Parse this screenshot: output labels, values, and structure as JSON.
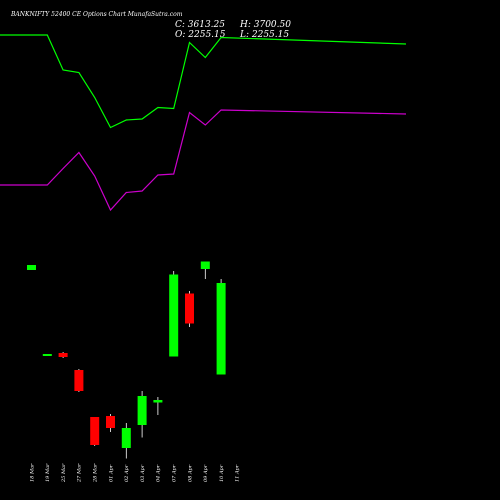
{
  "chart_data": {
    "type": "candlestick",
    "title": "BANKNIFTY 52400 CE Options Chart MunafaSutra.com",
    "ohlc_readout": {
      "close": "C: 3613.25",
      "high": "H: 3700.50",
      "open": "O: 2255.15",
      "low": "L: 2255.15"
    },
    "colors": {
      "background": "#000000",
      "up": "#00ff00",
      "down": "#ff0000",
      "line_upper": "#00ff00",
      "line_lower": "#cc00cc",
      "text": "#ffffff"
    },
    "dates": [
      "18 Mar",
      "19 Mar",
      "25 Mar",
      "27 Mar",
      "28 Mar",
      "01 Apr",
      "02 Apr",
      "03 Apr",
      "04 Apr",
      "07 Apr",
      "08 Apr",
      "09 Apr",
      "10 Apr",
      "11 Apr"
    ],
    "candles": [
      {
        "date": "18 Mar",
        "open": 760,
        "high": 770,
        "low": 760,
        "close": 770
      },
      {
        "date": "19 Mar",
        "open": 588,
        "high": 592,
        "low": 588,
        "close": 592
      },
      {
        "date": "25 Mar",
        "open": 594,
        "high": 596,
        "low": 584,
        "close": 586
      },
      {
        "date": "27 Mar",
        "open": 560,
        "high": 562,
        "low": 516,
        "close": 518
      },
      {
        "date": "28 Mar",
        "open": 466,
        "high": 466,
        "low": 408,
        "close": 410
      },
      {
        "date": "01 Apr",
        "open": 468,
        "high": 472,
        "low": 436,
        "close": 444
      },
      {
        "date": "02 Apr",
        "open": 404,
        "high": 454,
        "low": 383,
        "close": 444
      },
      {
        "date": "03 Apr",
        "open": 450,
        "high": 518,
        "low": 425,
        "close": 508
      },
      {
        "date": "04 Apr",
        "open": 495,
        "high": 506,
        "low": 470,
        "close": 500
      },
      {
        "date": "07 Apr",
        "open": 587,
        "high": 758,
        "low": 587,
        "close": 751
      },
      {
        "date": "08 Apr",
        "open": 713,
        "high": 718,
        "low": 646,
        "close": 653
      },
      {
        "date": "09 Apr",
        "open": 762,
        "high": 777,
        "low": 742,
        "close": 777
      },
      {
        "date": "10 Apr",
        "open": 551,
        "high": 742,
        "low": 551,
        "close": 734
      },
      {
        "date": "11 Apr",
        "open": null,
        "high": null,
        "low": null,
        "close": null
      }
    ],
    "series": [
      {
        "color": "#00ff00",
        "values": [
          1230,
          1230,
          1160,
          1155,
          1105,
          1045,
          1060,
          1062,
          1085,
          1083,
          1215,
          1185,
          1225,
          1212
        ]
      },
      {
        "color": "#cc00cc",
        "values": [
          930,
          930,
          963,
          995,
          948,
          880,
          915,
          918,
          950,
          952,
          1075,
          1050,
          1080,
          1072
        ]
      }
    ],
    "ylim": [
      300,
      1300
    ],
    "grid": false
  }
}
